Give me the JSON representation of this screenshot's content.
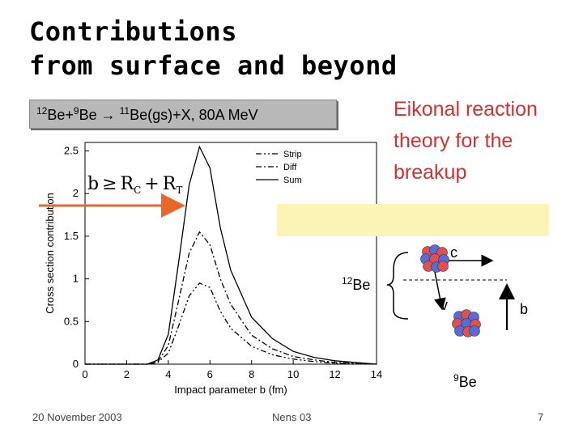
{
  "title": {
    "line1": "Contributions",
    "line2": "from surface and beyond"
  },
  "reaction": {
    "a": "12",
    "b": "Be+",
    "c": "9",
    "d": "Be ",
    "arrow": "→",
    "e": " ",
    "f": "11",
    "g": "Be(gs)+X, 80A MeV"
  },
  "eikonal": {
    "line1": "Eikonal reaction",
    "line2": "theory for the",
    "line3": "breakup"
  },
  "formula": {
    "b": "b",
    "geq": "≥",
    "rc": "R",
    "c": "C",
    "plus": "+",
    "rt": "R",
    "t": "T"
  },
  "diagram": {
    "c": "c",
    "v": "v",
    "b": "b",
    "be12_sup": "12",
    "be12": "Be",
    "be9_sup": "9",
    "be9": "Be"
  },
  "colors": {
    "arrow": "#e8662a",
    "eikonal": "#cc3333",
    "yellow": "#fbf4b4",
    "proton": "#e05050",
    "neutron": "#5a6ad8"
  },
  "chart_data": {
    "type": "line",
    "xlabel": "Impact parameter b  (fm)",
    "ylabel": "Cross section contribution",
    "xlim": [
      0,
      14
    ],
    "ylim": [
      0,
      2.6
    ],
    "xticks": [
      0,
      2,
      4,
      6,
      8,
      10,
      12,
      14
    ],
    "yticks": [
      0,
      0.5,
      1,
      1.5,
      2,
      2.5
    ],
    "legend_position": "top-right",
    "series": [
      {
        "name": "Sum",
        "style": "solid",
        "x": [
          0,
          2,
          3,
          3.5,
          4,
          4.5,
          5,
          5.5,
          6,
          6.5,
          7,
          8,
          9,
          10,
          11,
          12,
          13,
          14
        ],
        "y": [
          0,
          0,
          0,
          0.05,
          0.35,
          1.2,
          2.1,
          2.55,
          2.3,
          1.6,
          1.1,
          0.55,
          0.3,
          0.15,
          0.08,
          0.04,
          0.02,
          0
        ]
      },
      {
        "name": "Diff",
        "style": "dashdot",
        "x": [
          0,
          2,
          3,
          3.5,
          4,
          4.5,
          5,
          5.5,
          6,
          6.5,
          7,
          8,
          9,
          10,
          11,
          12,
          13,
          14
        ],
        "y": [
          0,
          0,
          0,
          0.03,
          0.22,
          0.75,
          1.3,
          1.55,
          1.4,
          1.0,
          0.7,
          0.34,
          0.18,
          0.09,
          0.05,
          0.02,
          0.01,
          0
        ]
      },
      {
        "name": "Strip",
        "style": "dashdotdot",
        "x": [
          0,
          2,
          3,
          3.5,
          4,
          4.5,
          5,
          5.5,
          6,
          6.5,
          7,
          8,
          9,
          10,
          11,
          12,
          13,
          14
        ],
        "y": [
          0,
          0,
          0,
          0.02,
          0.13,
          0.45,
          0.8,
          0.95,
          0.9,
          0.62,
          0.42,
          0.21,
          0.11,
          0.06,
          0.03,
          0.01,
          0.005,
          0
        ]
      }
    ]
  },
  "footer": {
    "date": "20 November 2003",
    "conference": "Nens 03",
    "page": "7"
  }
}
